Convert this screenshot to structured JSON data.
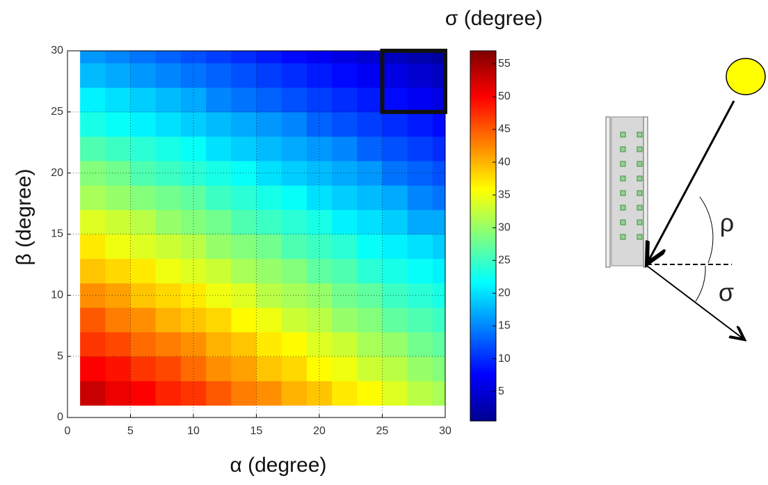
{
  "chart_data": {
    "type": "heatmap",
    "colorbar_label": "σ (degree)",
    "xlabel": "α (degree)",
    "ylabel": "β (degree)",
    "xbins": [
      1,
      3,
      5,
      7,
      9,
      11,
      13,
      15,
      17,
      19,
      21,
      23,
      25,
      27,
      29,
      30
    ],
    "ybins": [
      1,
      3,
      5,
      7,
      9,
      11,
      13,
      15,
      17,
      19,
      21,
      23,
      25,
      27,
      29,
      30
    ],
    "z": [
      [
        53,
        51,
        50,
        48,
        47,
        45,
        43,
        42,
        40,
        39,
        37,
        36,
        34,
        32,
        31
      ],
      [
        50,
        49,
        47,
        46,
        44,
        42,
        41,
        39,
        38,
        36,
        35,
        33,
        32,
        30,
        29
      ],
      [
        47,
        46,
        44,
        43,
        42,
        40,
        39,
        37,
        36,
        34,
        33,
        31,
        30,
        28,
        27
      ],
      [
        45,
        43,
        42,
        40,
        39,
        38,
        36,
        35,
        33,
        32,
        30,
        29,
        27,
        26,
        25
      ],
      [
        42,
        41,
        39,
        38,
        37,
        35,
        34,
        32,
        31,
        30,
        28,
        27,
        25,
        24,
        23
      ],
      [
        39,
        38,
        37,
        35,
        34,
        33,
        31,
        30,
        29,
        27,
        26,
        24,
        23,
        22,
        21
      ],
      [
        37,
        35,
        34,
        33,
        32,
        30,
        29,
        28,
        26,
        25,
        24,
        22,
        21,
        20,
        19
      ],
      [
        34,
        33,
        32,
        30,
        29,
        28,
        26,
        25,
        24,
        23,
        21,
        20,
        19,
        17,
        17
      ],
      [
        31,
        30,
        29,
        28,
        27,
        25,
        24,
        23,
        22,
        20,
        19,
        18,
        17,
        15,
        14
      ],
      [
        29,
        28,
        26,
        25,
        24,
        23,
        22,
        20,
        19,
        18,
        17,
        16,
        14,
        13,
        12
      ],
      [
        26,
        25,
        24,
        23,
        22,
        20,
        19,
        18,
        17,
        16,
        15,
        13,
        12,
        11,
        10
      ],
      [
        23,
        22,
        21,
        20,
        19,
        18,
        17,
        16,
        15,
        13,
        12,
        11,
        10,
        9,
        8
      ],
      [
        21,
        20,
        19,
        18,
        17,
        15,
        14,
        13,
        12,
        11,
        10,
        9,
        8,
        7,
        6
      ],
      [
        18,
        17,
        16,
        15,
        14,
        13,
        12,
        11,
        10,
        9,
        8,
        7,
        6,
        5,
        4
      ],
      [
        16,
        15,
        14,
        13,
        12,
        11,
        10,
        9,
        8,
        7,
        6,
        5,
        4,
        3,
        2
      ]
    ],
    "colormap": "jet",
    "clim": [
      0.5,
      57
    ],
    "cticks": [
      5,
      10,
      15,
      20,
      25,
      30,
      35,
      40,
      45,
      50,
      55
    ],
    "xlim": [
      0,
      30
    ],
    "xticks": [
      0,
      5,
      10,
      15,
      20,
      25,
      30
    ],
    "ylim": [
      0,
      30
    ],
    "yticks": [
      0,
      5,
      10,
      15,
      20,
      25,
      30
    ],
    "grid": true,
    "highlight_box": {
      "x": [
        25,
        30
      ],
      "y": [
        25,
        30
      ]
    }
  },
  "diagram": {
    "angle_labels": [
      "ρ",
      "σ"
    ]
  }
}
